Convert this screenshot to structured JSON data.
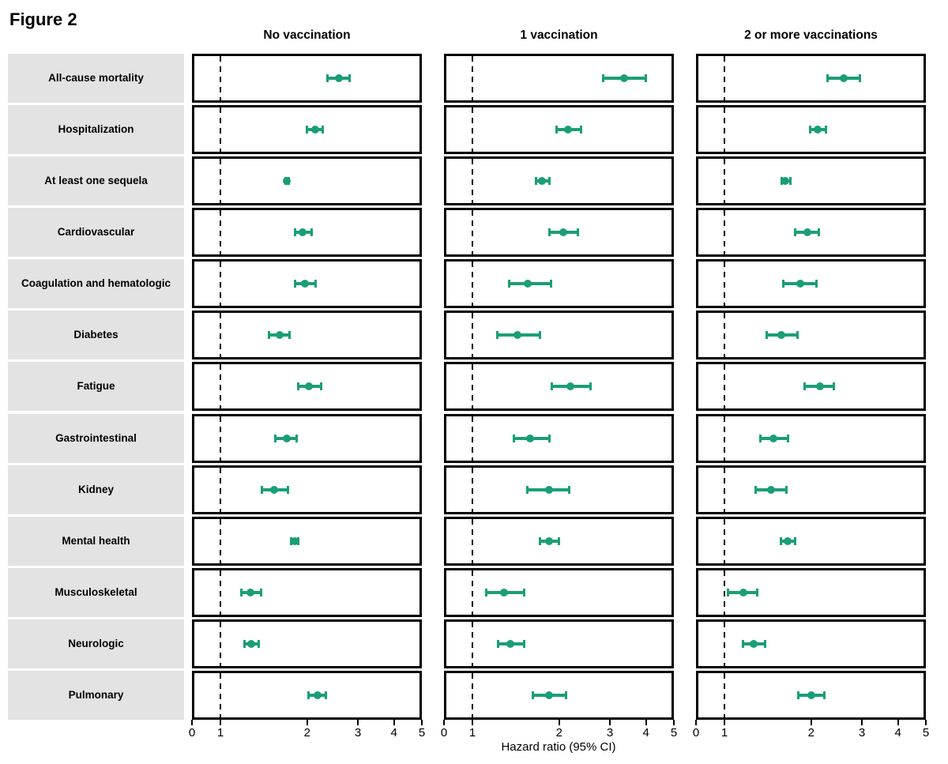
{
  "colors": {
    "marker": "#1B9E77",
    "label_bg": "#E3E3E3",
    "panel_border": "#000000"
  },
  "chart_data": {
    "type": "forest",
    "title": "Figure 2",
    "columns": [
      "No vaccination",
      "1 vaccination",
      "2 or more vaccinations"
    ],
    "xlabel": "Hazard ratio (95% CI)",
    "x_ticks": [
      0,
      1,
      2,
      3,
      4,
      5
    ],
    "x_scale": "log between 1 and 5; 0 shown at panel left edge; dashed reference line at 1",
    "legend_position": "none",
    "rows": [
      "All-cause mortality",
      "Hospitalization",
      "At least one sequela",
      "Cardiovascular",
      "Coagulation and hematologic",
      "Diabetes",
      "Fatigue",
      "Gastrointestinal",
      "Kidney",
      "Mental health",
      "Musculoskeletal",
      "Neurologic",
      "Pulmonary"
    ],
    "series": [
      {
        "name": "No vaccination",
        "values": [
          {
            "hr": 2.57,
            "lo": 2.35,
            "hi": 2.8
          },
          {
            "hr": 2.13,
            "lo": 2.0,
            "hi": 2.27
          },
          {
            "hr": 1.7,
            "lo": 1.68,
            "hi": 1.73
          },
          {
            "hr": 1.93,
            "lo": 1.81,
            "hi": 2.07
          },
          {
            "hr": 1.96,
            "lo": 1.81,
            "hi": 2.14
          },
          {
            "hr": 1.61,
            "lo": 1.47,
            "hi": 1.74
          },
          {
            "hr": 2.03,
            "lo": 1.86,
            "hi": 2.23
          },
          {
            "hr": 1.7,
            "lo": 1.55,
            "hi": 1.84
          },
          {
            "hr": 1.54,
            "lo": 1.39,
            "hi": 1.72
          },
          {
            "hr": 1.81,
            "lo": 1.76,
            "hi": 1.86
          },
          {
            "hr": 1.27,
            "lo": 1.18,
            "hi": 1.38
          },
          {
            "hr": 1.28,
            "lo": 1.21,
            "hi": 1.36
          },
          {
            "hr": 2.17,
            "lo": 2.02,
            "hi": 2.32
          }
        ]
      },
      {
        "name": "1 vaccination",
        "values": [
          {
            "hr": 3.37,
            "lo": 2.85,
            "hi": 4.0
          },
          {
            "hr": 2.15,
            "lo": 1.96,
            "hi": 2.38
          },
          {
            "hr": 1.74,
            "lo": 1.66,
            "hi": 1.85
          },
          {
            "hr": 2.07,
            "lo": 1.85,
            "hi": 2.32
          },
          {
            "hr": 1.56,
            "lo": 1.34,
            "hi": 1.87
          },
          {
            "hr": 1.43,
            "lo": 1.22,
            "hi": 1.71
          },
          {
            "hr": 2.19,
            "lo": 1.89,
            "hi": 2.57
          },
          {
            "hr": 1.59,
            "lo": 1.39,
            "hi": 1.85
          },
          {
            "hr": 1.84,
            "lo": 1.55,
            "hi": 2.17
          },
          {
            "hr": 1.85,
            "lo": 1.71,
            "hi": 2.0
          },
          {
            "hr": 1.29,
            "lo": 1.12,
            "hi": 1.51
          },
          {
            "hr": 1.35,
            "lo": 1.23,
            "hi": 1.51
          },
          {
            "hr": 1.85,
            "lo": 1.62,
            "hi": 2.11
          }
        ]
      },
      {
        "name": "2 or more vaccinations",
        "values": [
          {
            "hr": 2.6,
            "lo": 2.28,
            "hi": 2.95
          },
          {
            "hr": 2.11,
            "lo": 1.98,
            "hi": 2.25
          },
          {
            "hr": 1.63,
            "lo": 1.58,
            "hi": 1.69
          },
          {
            "hr": 1.94,
            "lo": 1.76,
            "hi": 2.12
          },
          {
            "hr": 1.83,
            "lo": 1.6,
            "hi": 2.08
          },
          {
            "hr": 1.58,
            "lo": 1.4,
            "hi": 1.79
          },
          {
            "hr": 2.14,
            "lo": 1.9,
            "hi": 2.4
          },
          {
            "hr": 1.48,
            "lo": 1.33,
            "hi": 1.66
          },
          {
            "hr": 1.45,
            "lo": 1.28,
            "hi": 1.64
          },
          {
            "hr": 1.66,
            "lo": 1.57,
            "hi": 1.76
          },
          {
            "hr": 1.16,
            "lo": 1.03,
            "hi": 1.3
          },
          {
            "hr": 1.26,
            "lo": 1.16,
            "hi": 1.38
          },
          {
            "hr": 2.0,
            "lo": 1.8,
            "hi": 2.22
          }
        ]
      }
    ]
  }
}
